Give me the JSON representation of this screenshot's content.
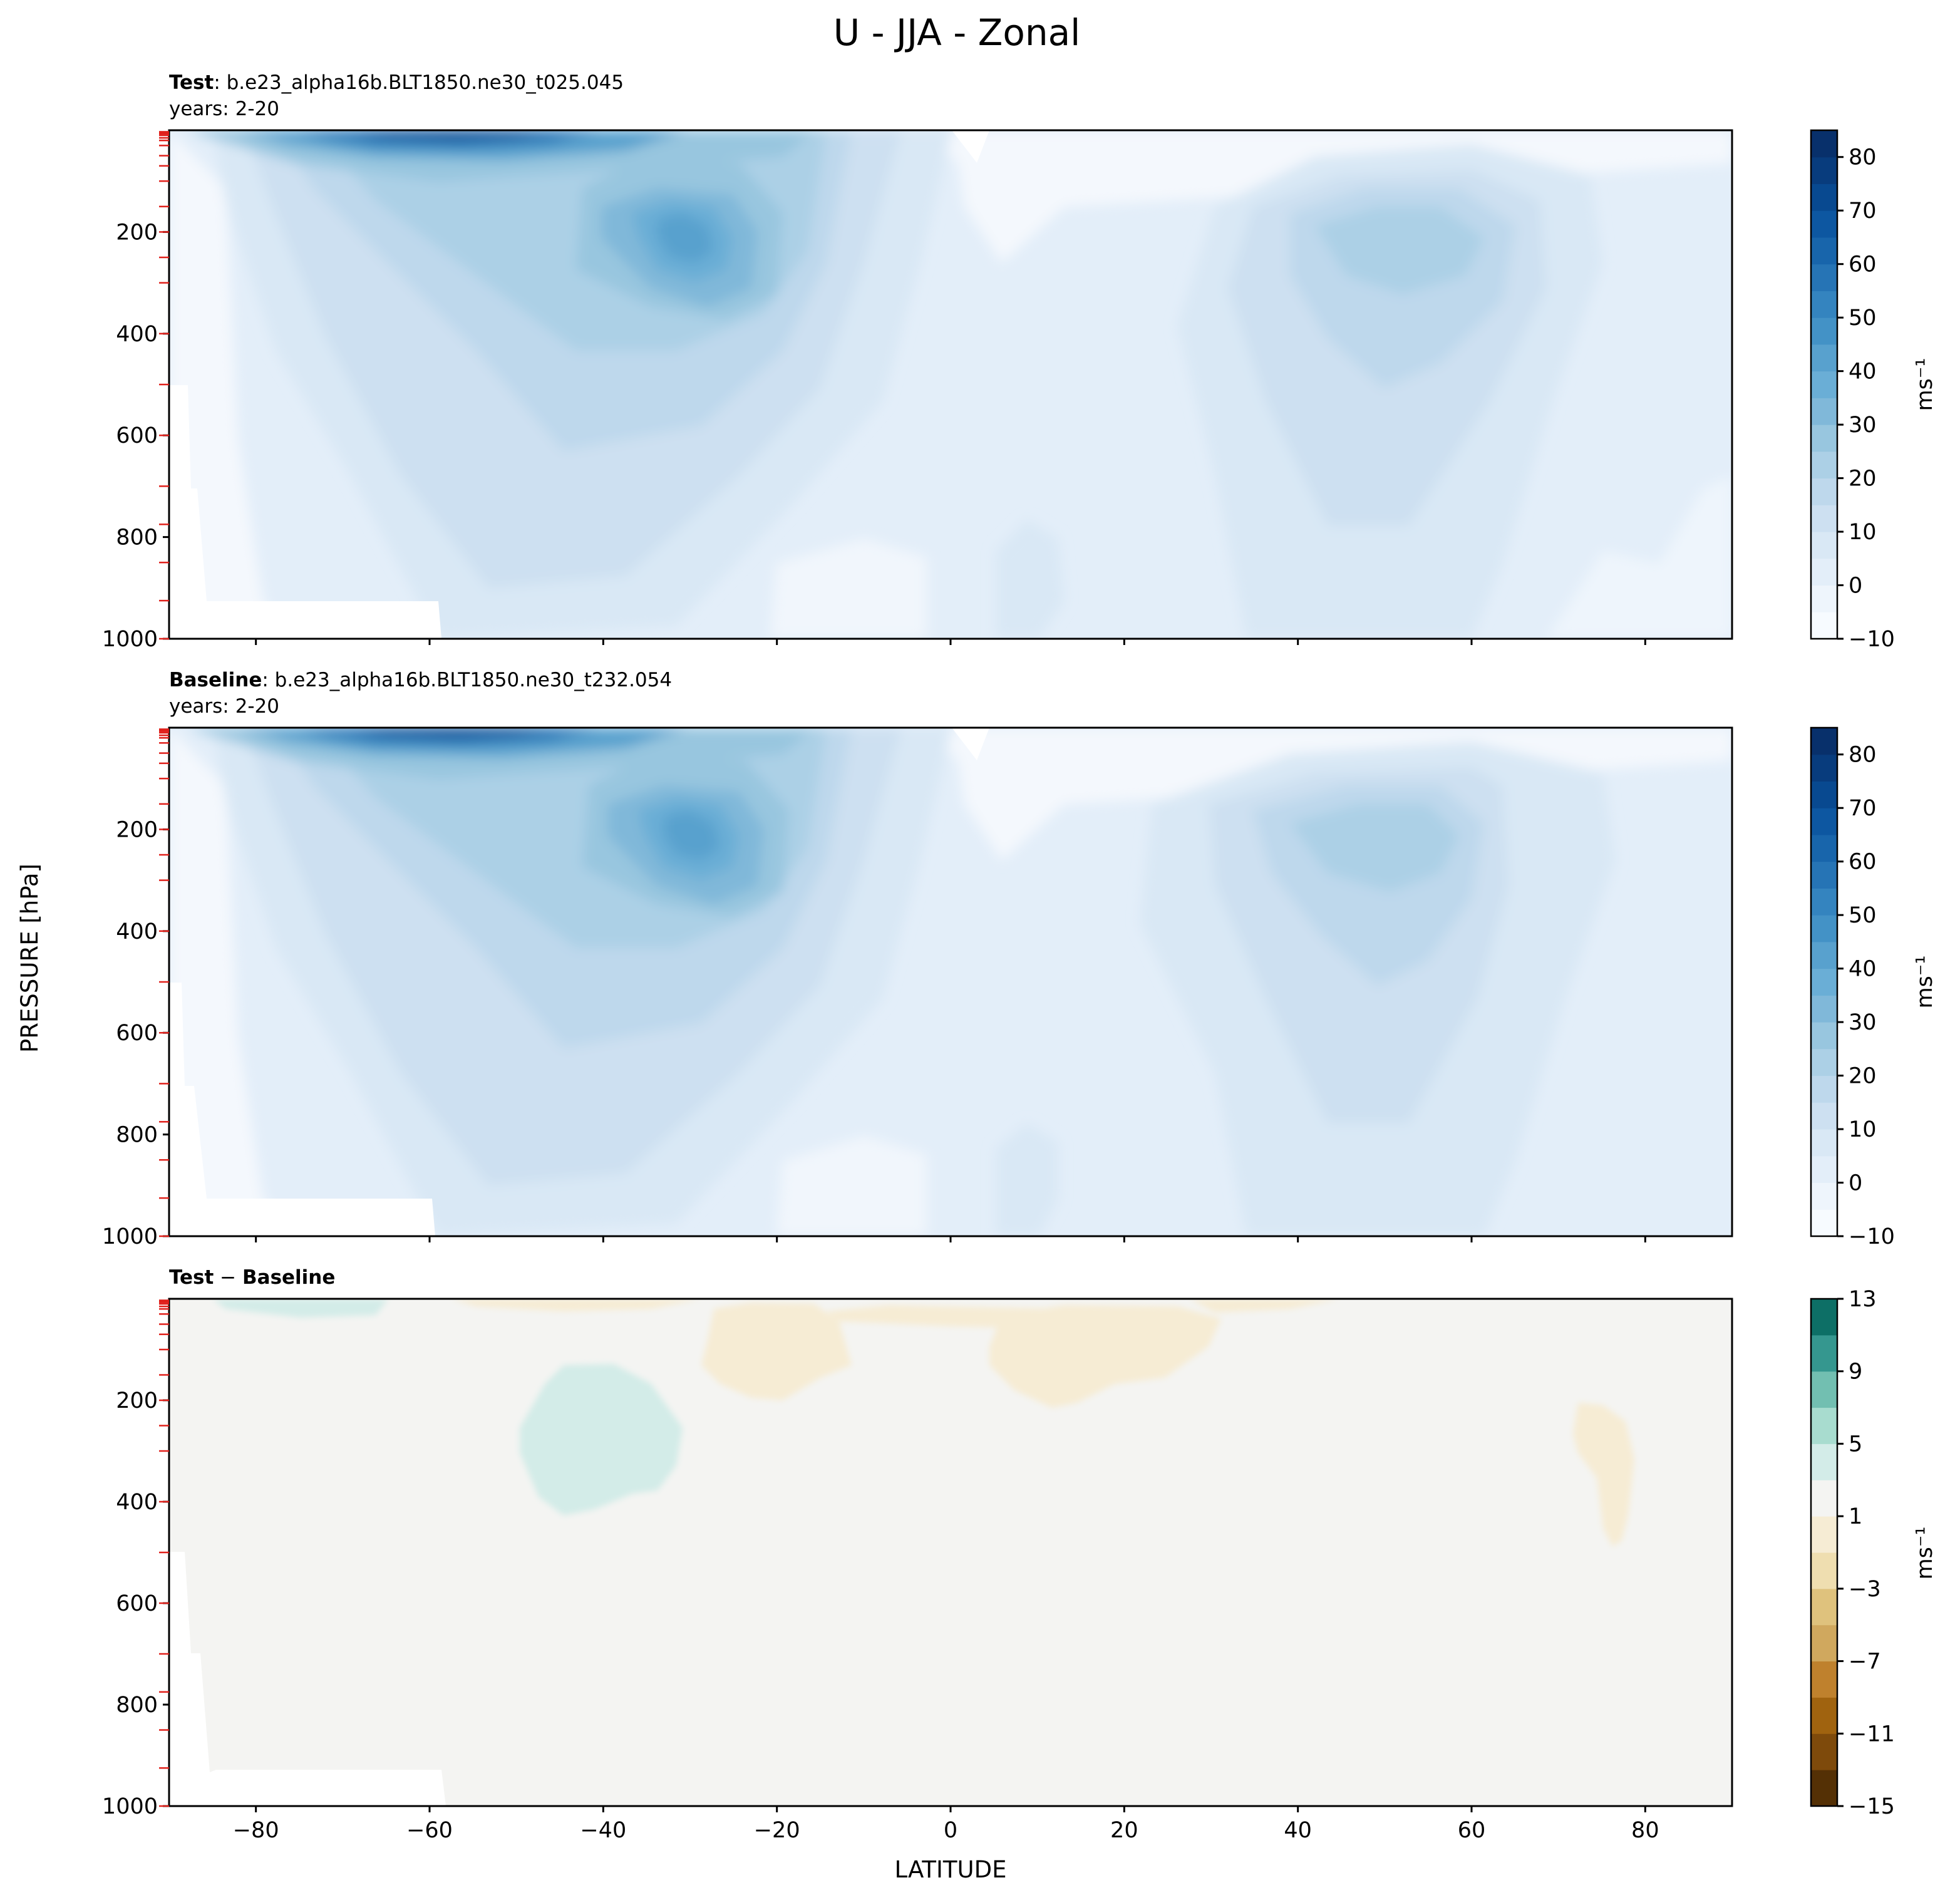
{
  "figure": {
    "title": "U - JJA - Zonal",
    "xlabel": "LATITUDE",
    "ylabel": "PRESSURE [hPa]"
  },
  "chart_data": [
    {
      "type": "contourf",
      "panel": "test",
      "label_bold": "Test",
      "label_rest": ": b.e23_alpha16b.BLT1850.ne30_t025.045",
      "years": "years: 2-20",
      "xlim": [
        -90,
        90
      ],
      "ylim": [
        1000,
        0
      ],
      "xticks": [
        -80,
        -60,
        -40,
        -20,
        0,
        20,
        40,
        60,
        80
      ],
      "yticks": [
        200,
        400,
        600,
        800,
        1000
      ],
      "colorbar": {
        "label": "ms⁻¹",
        "range": [
          -10,
          85
        ],
        "ticks": [
          -10,
          0,
          10,
          20,
          30,
          40,
          50,
          60,
          70,
          80
        ],
        "levels": [
          -10,
          -5,
          0,
          5,
          10,
          15,
          20,
          25,
          30,
          35,
          40,
          45,
          50,
          55,
          60,
          65,
          70,
          75,
          80,
          85
        ],
        "colors": [
          "#f7fbff",
          "#eef5fc",
          "#e3eef9",
          "#d9e8f5",
          "#cde0f1",
          "#bed8ec",
          "#acd0e6",
          "#98c6df",
          "#80b8d9",
          "#6aaed6",
          "#58a1ce",
          "#4392c6",
          "#3484bf",
          "#2674b5",
          "#1865ab",
          "#0d57a1",
          "#084990",
          "#083c7d",
          "#08306b"
        ]
      },
      "features": [
        {
          "name": "SH polar night jet",
          "lat": -55,
          "pressure": 10,
          "value": 80
        },
        {
          "name": "SH subtropical jet",
          "lat": -30,
          "pressure": 200,
          "value": 40
        },
        {
          "name": "NH midlatitude jet",
          "lat": 45,
          "pressure": 200,
          "value": 25
        }
      ]
    },
    {
      "type": "contourf",
      "panel": "baseline",
      "label_bold": "Baseline",
      "label_rest": ": b.e23_alpha16b.BLT1850.ne30_t232.054",
      "years": "years: 2-20",
      "xlim": [
        -90,
        90
      ],
      "ylim": [
        1000,
        0
      ],
      "xticks": [
        -80,
        -60,
        -40,
        -20,
        0,
        20,
        40,
        60,
        80
      ],
      "yticks": [
        200,
        400,
        600,
        800,
        1000
      ],
      "colorbar": {
        "label": "ms⁻¹",
        "range": [
          -10,
          85
        ],
        "ticks": [
          -10,
          0,
          10,
          20,
          30,
          40,
          50,
          60,
          70,
          80
        ],
        "levels": [
          -10,
          -5,
          0,
          5,
          10,
          15,
          20,
          25,
          30,
          35,
          40,
          45,
          50,
          55,
          60,
          65,
          70,
          75,
          80,
          85
        ],
        "colors": [
          "#f7fbff",
          "#eef5fc",
          "#e3eef9",
          "#d9e8f5",
          "#cde0f1",
          "#bed8ec",
          "#acd0e6",
          "#98c6df",
          "#80b8d9",
          "#6aaed6",
          "#58a1ce",
          "#4392c6",
          "#3484bf",
          "#2674b5",
          "#1865ab",
          "#0d57a1",
          "#084990",
          "#083c7d",
          "#08306b"
        ]
      },
      "features": [
        {
          "name": "SH polar night jet",
          "lat": -55,
          "pressure": 10,
          "value": 80
        },
        {
          "name": "SH subtropical jet",
          "lat": -30,
          "pressure": 200,
          "value": 40
        },
        {
          "name": "NH midlatitude jet",
          "lat": 45,
          "pressure": 200,
          "value": 25
        }
      ]
    },
    {
      "type": "contourf",
      "panel": "difference",
      "label_bold": "Test",
      "label_sep": " − ",
      "label_bold2": "Baseline",
      "xlim": [
        -90,
        90
      ],
      "ylim": [
        1000,
        0
      ],
      "xticks": [
        -80,
        -60,
        -40,
        -20,
        0,
        20,
        40,
        60,
        80
      ],
      "yticks": [
        200,
        400,
        600,
        800,
        1000
      ],
      "colorbar": {
        "label": "ms⁻¹",
        "range": [
          -15,
          13
        ],
        "ticks": [
          -15,
          -11,
          -7,
          -3,
          1,
          5,
          9,
          13
        ],
        "levels": [
          -15,
          -13,
          -11,
          -9,
          -7,
          -5,
          -3,
          -1,
          1,
          3,
          5,
          7,
          9,
          11,
          13
        ],
        "colors": [
          "#543005",
          "#7e4a0b",
          "#a0630f",
          "#bf812d",
          "#d0a85e",
          "#dfc27d",
          "#efdeb0",
          "#f6ecd4",
          "#f4f4f2",
          "#d3ece8",
          "#a8dccf",
          "#72bfb1",
          "#35978f",
          "#0d6f66",
          "#003c30"
        ]
      },
      "regions": [
        {
          "name": "positive anomaly",
          "lat": -40,
          "pressure": 300,
          "value": 2
        },
        {
          "name": "negative anomaly",
          "lat": -25,
          "pressure": 150,
          "value": -2
        },
        {
          "name": "negative anomaly",
          "lat": 13,
          "pressure": 170,
          "value": -2
        },
        {
          "name": "negative anomaly",
          "lat": 75,
          "pressure": 300,
          "value": -2
        }
      ]
    }
  ]
}
